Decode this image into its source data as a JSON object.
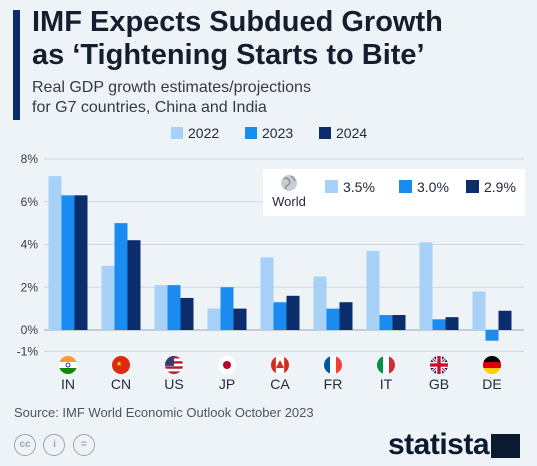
{
  "header": {
    "title_line1": "IMF Expects Subdued Growth",
    "title_line2": "as ‘Tightening Starts to Bite’",
    "subtitle_line1": "Real GDP growth estimates/projections",
    "subtitle_line2": "for G7 countries, China and India"
  },
  "chart_data": {
    "type": "bar",
    "categories": [
      "IN",
      "CN",
      "US",
      "JP",
      "CA",
      "FR",
      "IT",
      "GB",
      "DE"
    ],
    "flags": [
      "india-flag-icon",
      "china-flag-icon",
      "usa-flag-icon",
      "japan-flag-icon",
      "canada-flag-icon",
      "france-flag-icon",
      "italy-flag-icon",
      "uk-flag-icon",
      "germany-flag-icon"
    ],
    "series": [
      {
        "name": "2022",
        "color": "#a7d1f7",
        "values": [
          7.2,
          3.0,
          2.1,
          1.0,
          3.4,
          2.5,
          3.7,
          4.1,
          1.8
        ]
      },
      {
        "name": "2023",
        "color": "#1a8cf0",
        "values": [
          6.3,
          5.0,
          2.1,
          2.0,
          1.3,
          1.0,
          0.7,
          0.5,
          -0.5
        ]
      },
      {
        "name": "2024",
        "color": "#0b2d6b",
        "values": [
          6.3,
          4.2,
          1.5,
          1.0,
          1.6,
          1.3,
          0.7,
          0.6,
          0.9
        ]
      }
    ],
    "yticks": [
      "8%",
      "6%",
      "4%",
      "2%",
      "0%",
      "-1%"
    ],
    "ytick_values": [
      8,
      6,
      4,
      2,
      0,
      -1
    ],
    "ylim": [
      -1,
      8
    ],
    "grid": true,
    "legend_position": "top-center",
    "world": {
      "label": "World",
      "values": [
        "3.5%",
        "3.0%",
        "2.9%"
      ]
    }
  },
  "footer": {
    "source": "Source: IMF World Economic Outlook October 2023",
    "brand": "statista",
    "license_icons": [
      "creative-commons-icon",
      "attribution-icon",
      "equals-icon"
    ]
  }
}
